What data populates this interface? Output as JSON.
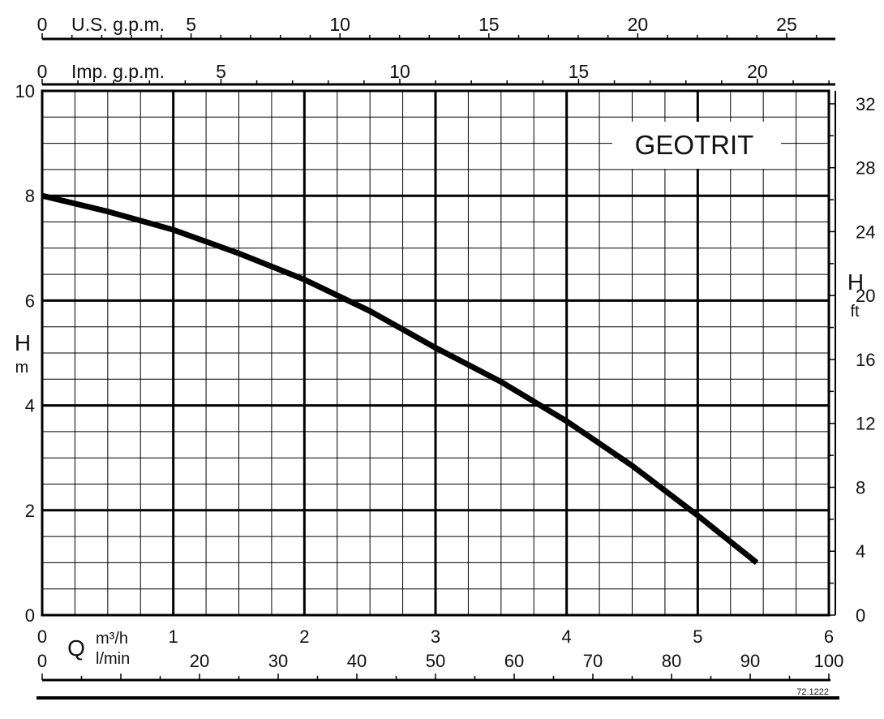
{
  "chart_data": {
    "type": "line",
    "title": "GEOTRIT",
    "code": "72.1222",
    "x": [
      0,
      0.5,
      1,
      1.5,
      2,
      2.5,
      3,
      3.5,
      4,
      4.5,
      5,
      5.45
    ],
    "series": [
      {
        "values": [
          8.0,
          7.7,
          7.35,
          6.9,
          6.4,
          5.8,
          5.1,
          4.45,
          3.7,
          2.85,
          1.9,
          1.0
        ]
      }
    ],
    "xlim": [
      0,
      6
    ],
    "ylim": [
      0,
      10
    ],
    "grid": true,
    "y_axis_left": {
      "label": "H",
      "unit": "m",
      "ticks": [
        "0",
        "2",
        "4",
        "6",
        "8",
        "10"
      ]
    },
    "y_axis_right": {
      "label": "H",
      "unit": "ft",
      "ticks": [
        "0",
        "4",
        "8",
        "12",
        "16",
        "20",
        "24",
        "28",
        "32"
      ]
    },
    "x_axis_m3h": {
      "symbol": "Q",
      "unit": "m³/h",
      "ticks": [
        "0",
        "1",
        "2",
        "3",
        "4",
        "5",
        "6"
      ]
    },
    "x_axis_lmin": {
      "unit": "l/min",
      "ticks": [
        "0",
        "20",
        "30",
        "40",
        "50",
        "60",
        "70",
        "80",
        "90",
        "100"
      ]
    },
    "x_axis_imp": {
      "unit": "Imp. g.p.m.",
      "ticks": [
        "0",
        "5",
        "10",
        "15",
        "20"
      ]
    },
    "x_axis_us": {
      "unit": "U.S. g.p.m.",
      "ticks": [
        "0",
        "5",
        "10",
        "15",
        "20",
        "25"
      ]
    }
  }
}
